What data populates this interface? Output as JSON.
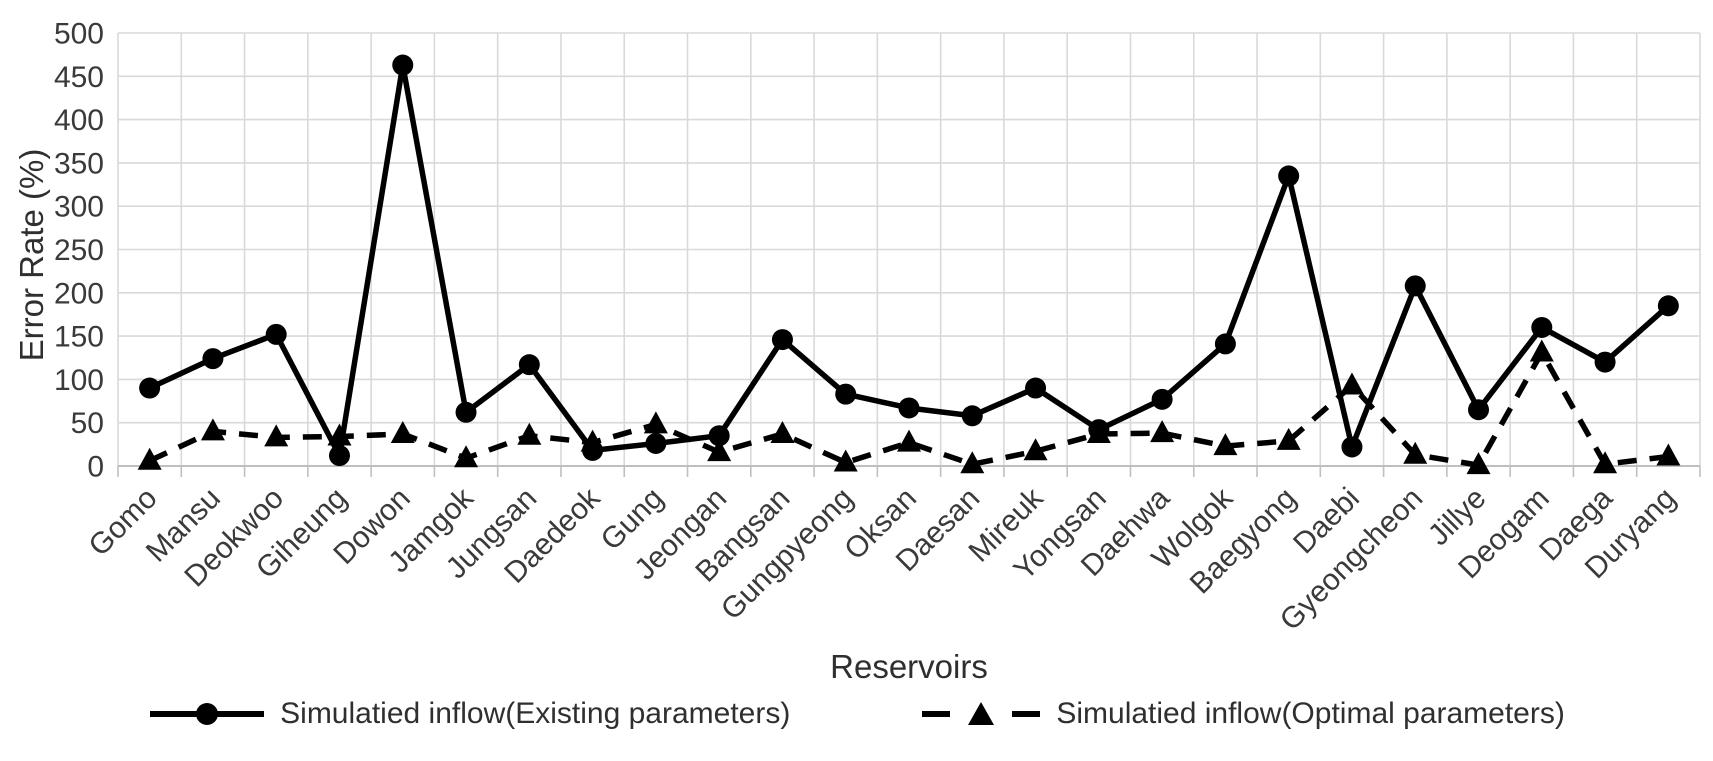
{
  "chart_data": {
    "type": "line",
    "title": "",
    "xlabel": "Reservoirs",
    "ylabel": "Error Rate (%)",
    "ylim": [
      0,
      500
    ],
    "ytick_step": 50,
    "grid": true,
    "legend_position": "bottom",
    "categories": [
      "Gomo",
      "Mansu",
      "Deokwoo",
      "Giheung",
      "Dowon",
      "Jamgok",
      "Jungsan",
      "Daedeok",
      "Gung",
      "Jeongan",
      "Bangsan",
      "Gungpyeong",
      "Oksan",
      "Daesan",
      "Mireuk",
      "Yongsan",
      "Daehwa",
      "Wolgok",
      "Baegyong",
      "Daebi",
      "Gyeongcheon",
      "Jillye",
      "Deogam",
      "Daega",
      "Duryang"
    ],
    "series": [
      {
        "name": "Simulatied inflow(Existing parameters)",
        "marker": "circle",
        "line_style": "solid",
        "values": [
          90,
          124,
          152,
          12,
          463,
          62,
          117,
          18,
          26,
          35,
          146,
          83,
          67,
          58,
          90,
          42,
          77,
          141,
          335,
          22,
          208,
          65,
          160,
          120,
          185
        ]
      },
      {
        "name": "Simulatied inflow(Optimal parameters)",
        "marker": "triangle",
        "line_style": "dashed",
        "values": [
          6,
          40,
          33,
          34,
          37,
          9,
          35,
          27,
          48,
          16,
          37,
          4,
          27,
          2,
          17,
          37,
          38,
          23,
          29,
          93,
          13,
          1,
          131,
          2,
          11
        ]
      }
    ],
    "colors": {
      "series": "#000000",
      "gridline": "#d9d9d9",
      "axis": "#bfbfbf",
      "text": "#3a3a3a"
    }
  }
}
